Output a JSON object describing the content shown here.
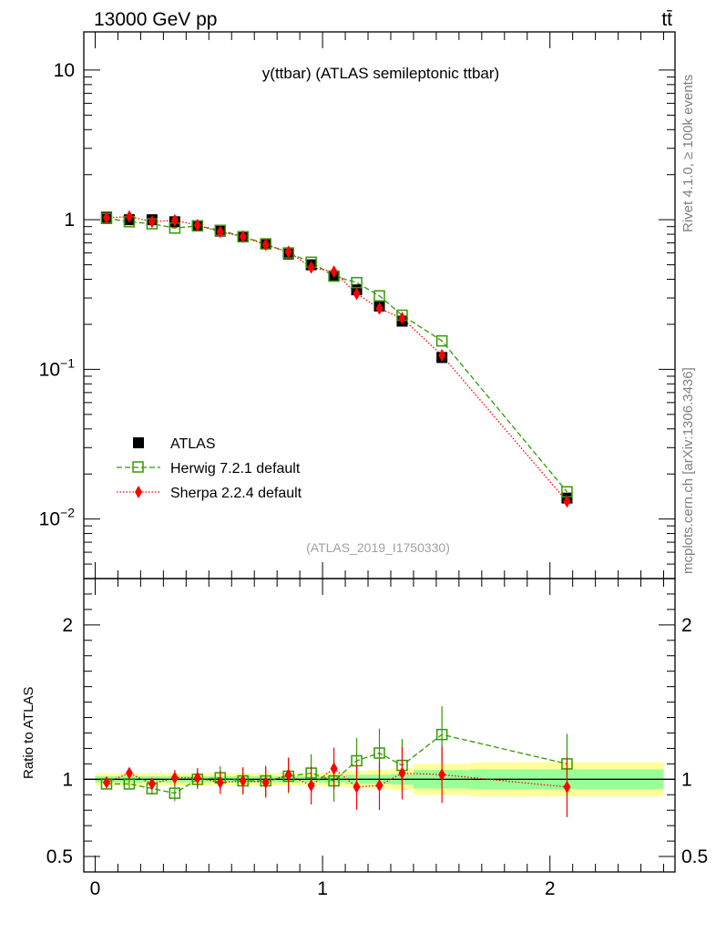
{
  "header": {
    "energy_label": "13000 GeV pp",
    "process_label": "tt̄"
  },
  "side_labels": {
    "rivet": "Rivet 4.1.0, ≥ 100k events",
    "mcplots": "mcplots.cern.ch [arXiv:1306.3436]"
  },
  "analysis_id": "(ATLAS_2019_I1750330)",
  "colors": {
    "atlas": "#000000",
    "herwig": "#339900",
    "sherpa": "#ff0000",
    "band_outer": "#ffff99",
    "band_inner": "#99ff99"
  },
  "chart_data": [
    {
      "type": "scatter",
      "title": "y(ttbar) (ATLAS semileptonic ttbar)",
      "yscale": "log",
      "xlim": [
        -0.05,
        2.55
      ],
      "ylim": [
        0.004,
        18
      ],
      "x_ticks": [
        0,
        1,
        2
      ],
      "y_tick_labels": [
        "10",
        "1",
        "10−1",
        "10−2"
      ],
      "legend_position": "bottom-left",
      "x": [
        0.05,
        0.15,
        0.25,
        0.35,
        0.45,
        0.55,
        0.65,
        0.75,
        0.85,
        0.95,
        1.05,
        1.15,
        1.25,
        1.35,
        1.525,
        2.075
      ],
      "bin_edges": [
        0.0,
        0.1,
        0.2,
        0.3,
        0.4,
        0.5,
        0.6,
        0.7,
        0.8,
        0.9,
        1.0,
        1.1,
        1.2,
        1.3,
        1.4,
        1.65,
        2.5
      ],
      "series": [
        {
          "name": "ATLAS",
          "marker": "filled-square",
          "values": [
            1.04,
            1.0,
            1.0,
            0.97,
            0.91,
            0.84,
            0.77,
            0.69,
            0.59,
            0.5,
            0.42,
            0.34,
            0.265,
            0.21,
            0.12,
            0.0138
          ]
        },
        {
          "name": "Herwig 7.2.1 default",
          "marker": "open-square",
          "line": "dashed",
          "values": [
            1.02,
            0.97,
            0.94,
            0.88,
            0.91,
            0.85,
            0.77,
            0.69,
            0.6,
            0.52,
            0.42,
            0.38,
            0.31,
            0.23,
            0.155,
            0.0152
          ]
        },
        {
          "name": "Sherpa 2.2.4 default",
          "marker": "filled-diamond",
          "line": "dotted",
          "values": [
            1.03,
            1.05,
            0.97,
            0.99,
            0.92,
            0.83,
            0.77,
            0.68,
            0.61,
            0.48,
            0.45,
            0.32,
            0.255,
            0.22,
            0.124,
            0.0131
          ]
        }
      ]
    },
    {
      "type": "scatter",
      "ylabel": "Ratio to ATLAS",
      "xlim": [
        -0.05,
        2.55
      ],
      "ylim": [
        0.4,
        2.3
      ],
      "x_ticks": [
        0,
        1,
        2
      ],
      "y_ticks": [
        0.5,
        1,
        2
      ],
      "x": [
        0.05,
        0.15,
        0.25,
        0.35,
        0.45,
        0.55,
        0.65,
        0.75,
        0.85,
        0.95,
        1.05,
        1.15,
        1.25,
        1.35,
        1.525,
        2.075
      ],
      "bin_edges": [
        0.0,
        0.1,
        0.2,
        0.3,
        0.4,
        0.5,
        0.6,
        0.7,
        0.8,
        0.9,
        1.0,
        1.1,
        1.2,
        1.3,
        1.4,
        1.65,
        2.5
      ],
      "band_inner_halfwidth": [
        0.02,
        0.02,
        0.02,
        0.02,
        0.02,
        0.02,
        0.02,
        0.02,
        0.02,
        0.02,
        0.02,
        0.03,
        0.03,
        0.035,
        0.06,
        0.065
      ],
      "band_outer_halfwidth": [
        0.04,
        0.04,
        0.04,
        0.04,
        0.04,
        0.04,
        0.04,
        0.04,
        0.04,
        0.04,
        0.045,
        0.055,
        0.06,
        0.07,
        0.1,
        0.11
      ],
      "series": [
        {
          "name": "Herwig 7.2.1 default",
          "values": [
            0.97,
            0.97,
            0.94,
            0.91,
            1.0,
            1.01,
            0.99,
            0.99,
            1.02,
            1.04,
            0.99,
            1.12,
            1.17,
            1.09,
            1.29,
            1.1
          ]
        },
        {
          "name": "Sherpa 2.2.4 default",
          "values": [
            0.98,
            1.04,
            0.97,
            1.01,
            1.01,
            0.98,
            0.99,
            0.98,
            1.03,
            0.96,
            1.07,
            0.95,
            0.96,
            1.04,
            1.03,
            0.95
          ]
        }
      ]
    }
  ]
}
